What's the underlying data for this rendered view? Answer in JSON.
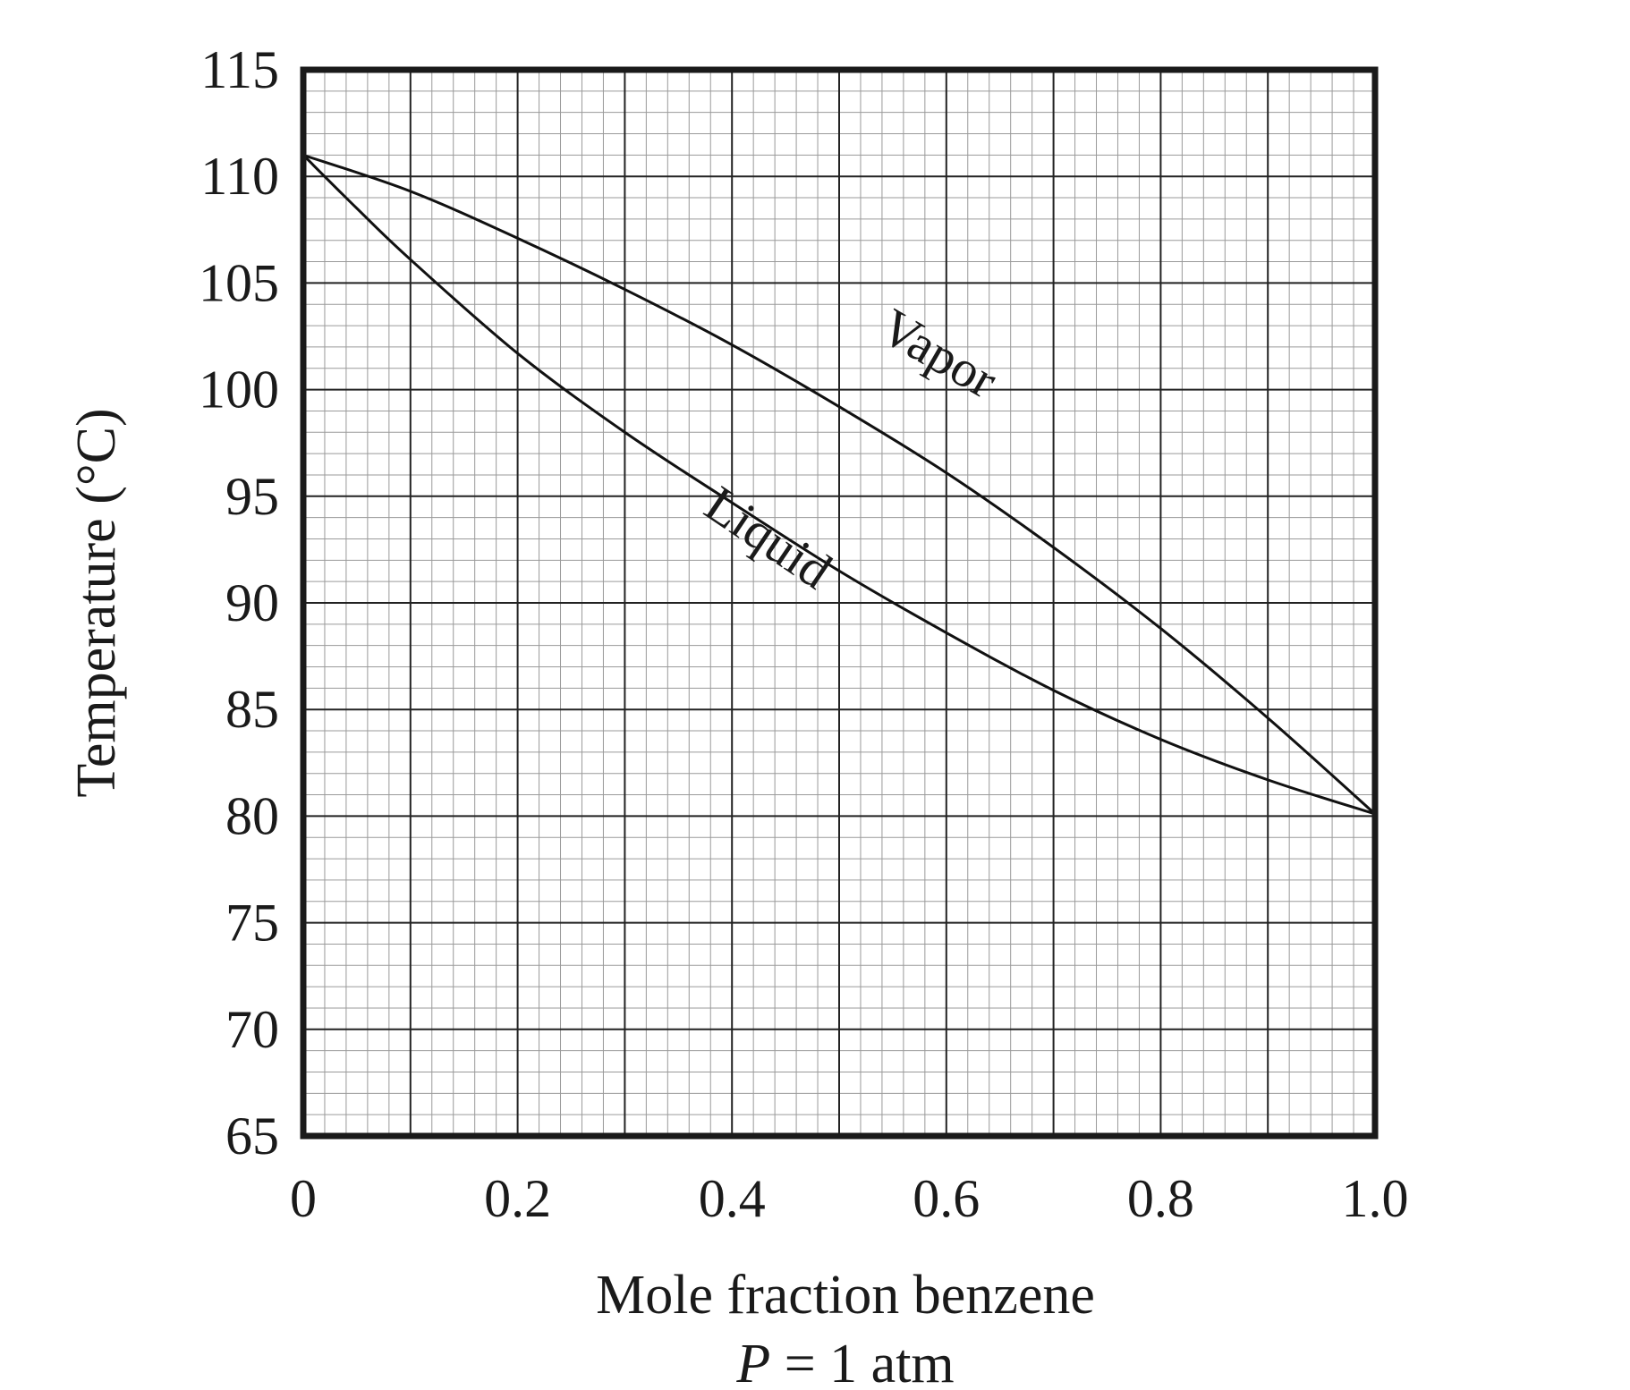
{
  "chart_data": {
    "type": "line",
    "title": "",
    "xlabel": "Mole fraction benzene",
    "ylabel": "Temperature (°C)",
    "subtitle": {
      "variable": "P",
      "rest": " = 1 atm"
    },
    "xlim": [
      0,
      1.0
    ],
    "ylim": [
      65,
      115
    ],
    "x_ticks": [
      0,
      0.2,
      0.4,
      0.6,
      0.8,
      1.0
    ],
    "x_tick_labels": [
      "0",
      "0.2",
      "0.4",
      "0.6",
      "0.8",
      "1.0"
    ],
    "y_ticks": [
      65,
      70,
      75,
      80,
      85,
      90,
      95,
      100,
      105,
      110,
      115
    ],
    "y_tick_labels": [
      "65",
      "70",
      "75",
      "80",
      "85",
      "90",
      "95",
      "100",
      "105",
      "110",
      "115"
    ],
    "grid": {
      "major_x_step": 0.1,
      "minor_x_step": 0.02,
      "major_y_step": 5,
      "minor_y_step": 1
    },
    "series": [
      {
        "name": "Vapor",
        "x": [
          0,
          0.1,
          0.2,
          0.3,
          0.4,
          0.5,
          0.6,
          0.7,
          0.8,
          0.9,
          1.0
        ],
        "y": [
          111,
          109.3,
          107.1,
          104.7,
          102.1,
          99.2,
          96.1,
          92.6,
          88.8,
          84.6,
          80.1
        ]
      },
      {
        "name": "Liquid",
        "x": [
          0,
          0.05,
          0.1,
          0.2,
          0.3,
          0.4,
          0.5,
          0.6,
          0.7,
          0.8,
          0.9,
          1.0
        ],
        "y": [
          111,
          108.5,
          106.1,
          101.7,
          98,
          94.7,
          91.5,
          88.6,
          85.9,
          83.6,
          81.7,
          80.1
        ]
      }
    ],
    "curve_labels": [
      {
        "text": "Vapor",
        "x": 0.585,
        "y": 101,
        "angle": 30
      },
      {
        "text": "Liquid",
        "x": 0.425,
        "y": 92.4,
        "angle": 34
      }
    ]
  }
}
